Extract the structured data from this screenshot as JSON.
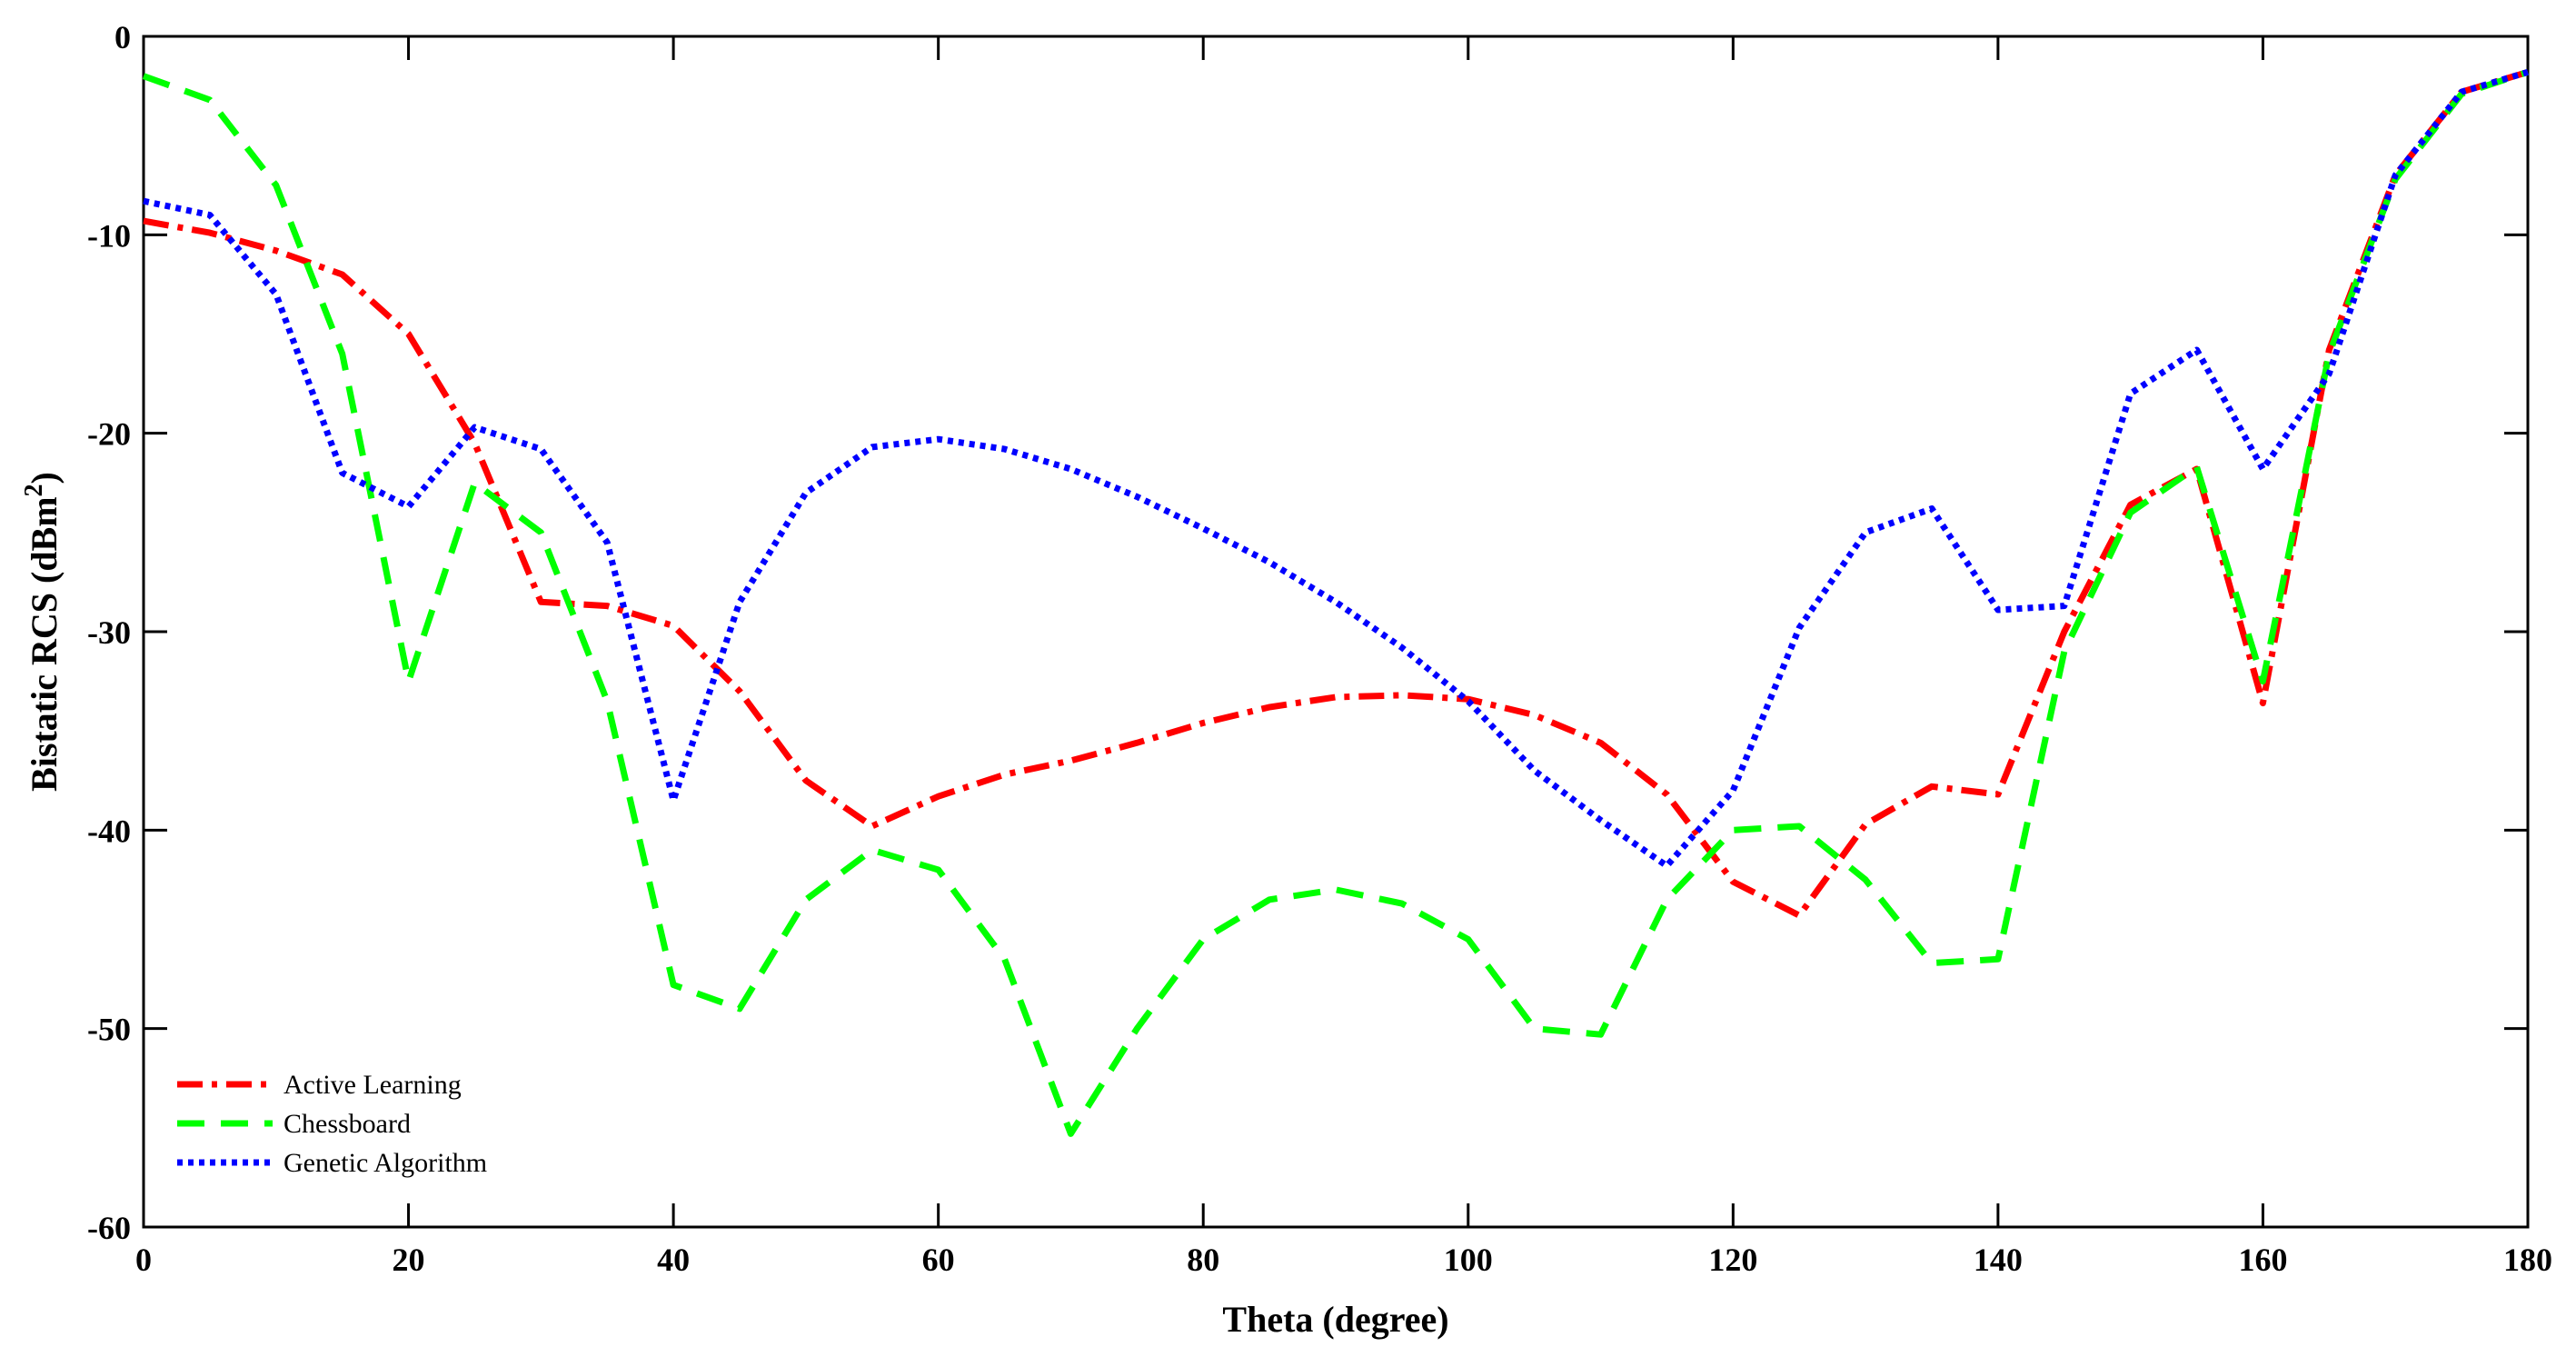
{
  "chart_data": {
    "type": "line",
    "xlabel": "Theta (degree)",
    "ylabel": "Bistatic RCS (dBm",
    "ylabel_sup": "2",
    "ylabel_close": ")",
    "xlim": [
      0,
      180
    ],
    "ylim": [
      -60,
      0
    ],
    "xticks": [
      0,
      20,
      40,
      60,
      80,
      100,
      120,
      140,
      160,
      180
    ],
    "yticks": [
      0,
      -10,
      -20,
      -30,
      -40,
      -50,
      -60
    ],
    "grid": false,
    "legend_position": "bottom-left",
    "x": [
      0,
      5,
      10,
      15,
      20,
      25,
      30,
      35,
      40,
      45,
      50,
      55,
      60,
      65,
      70,
      75,
      80,
      85,
      90,
      95,
      100,
      105,
      110,
      115,
      120,
      125,
      130,
      135,
      140,
      145,
      150,
      155,
      160,
      165,
      170,
      175,
      180
    ],
    "series": [
      {
        "name": "Active Learning",
        "color": "#ff0000",
        "style": "dash-dot",
        "values": [
          -9.3,
          -9.9,
          -10.8,
          -12.0,
          -15.0,
          -20.5,
          -28.5,
          -28.7,
          -29.7,
          -33.0,
          -37.5,
          -39.8,
          -38.3,
          -37.2,
          -36.5,
          -35.6,
          -34.6,
          -33.8,
          -33.3,
          -33.2,
          -33.4,
          -34.2,
          -35.6,
          -38.2,
          -42.6,
          -44.3,
          -39.7,
          -37.8,
          -38.2,
          -30.0,
          -23.6,
          -21.8,
          -33.6,
          -15.8,
          -7.0,
          -2.8,
          -1.8
        ]
      },
      {
        "name": "Chessboard",
        "color": "#00ff00",
        "style": "dash",
        "values": [
          -2.0,
          -3.2,
          -7.5,
          -16.0,
          -32.5,
          -22.5,
          -25.0,
          -33.5,
          -47.8,
          -49.0,
          -43.5,
          -41.0,
          -42.0,
          -46.5,
          -55.3,
          -50.0,
          -45.5,
          -43.5,
          -43.0,
          -43.7,
          -45.5,
          -50.0,
          -50.3,
          -43.5,
          -40.0,
          -39.8,
          -42.5,
          -46.7,
          -46.5,
          -31.0,
          -24.0,
          -21.7,
          -32.5,
          -16.0,
          -7.2,
          -2.9,
          -1.8
        ]
      },
      {
        "name": "Genetic Algorithm",
        "color": "#0000ff",
        "style": "dot",
        "values": [
          -8.3,
          -9.0,
          -13.0,
          -22.0,
          -23.7,
          -19.7,
          -20.8,
          -25.5,
          -38.5,
          -28.5,
          -23.0,
          -20.7,
          -20.3,
          -20.8,
          -21.8,
          -23.2,
          -24.8,
          -26.5,
          -28.5,
          -30.8,
          -33.5,
          -37.0,
          -39.5,
          -41.8,
          -38.0,
          -29.8,
          -25.0,
          -23.8,
          -28.9,
          -28.7,
          -18.0,
          -15.8,
          -21.8,
          -17.0,
          -7.0,
          -2.8,
          -1.8
        ]
      }
    ]
  }
}
